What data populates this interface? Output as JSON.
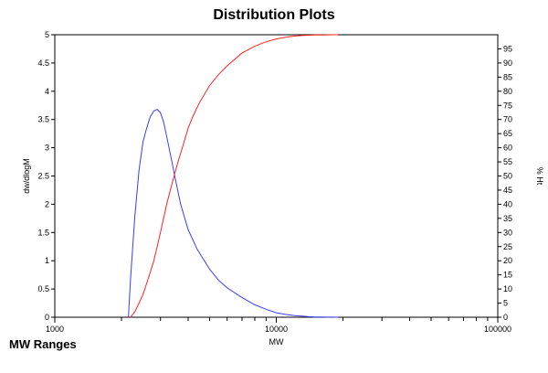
{
  "page": {
    "footer_label": "MW Ranges"
  },
  "chart_data": {
    "type": "line",
    "title": "Distribution Plots",
    "xlabel": "MW",
    "ylabel": "dw/dlogM",
    "y2label": "% Ht",
    "x_scale": "log",
    "xlim": [
      1000,
      100000
    ],
    "ylim": [
      0,
      5
    ],
    "y2lim": [
      0,
      100
    ],
    "x_tick_labels": [
      "1000",
      "10000",
      "100000"
    ],
    "y_tick_labels": [
      "0",
      "0.5",
      "1",
      "1.5",
      "2",
      "2.5",
      "3",
      "3.5",
      "4",
      "4.5",
      "5"
    ],
    "y2_tick_labels": [
      "0",
      "5",
      "10",
      "15",
      "20",
      "25",
      "30",
      "35",
      "40",
      "45",
      "50",
      "55",
      "60",
      "65",
      "70",
      "75",
      "80",
      "85",
      "90",
      "95"
    ],
    "grid": false,
    "colors": {
      "dist": "#3b3bff",
      "cum": "#ff2020",
      "axis": "#000000"
    },
    "series": [
      {
        "axis": "left",
        "x": [
          2150,
          2200,
          2300,
          2400,
          2500,
          2600,
          2700,
          2800,
          2900,
          3000,
          3100,
          3200,
          3300,
          3400,
          3500,
          3700,
          4000,
          4400,
          5000,
          5500,
          6000,
          7000,
          8000,
          9000,
          10000,
          11000,
          12000,
          13000,
          14000,
          15000,
          16000,
          17000,
          18000,
          19000
        ],
        "values": [
          0.0,
          0.7,
          1.8,
          2.6,
          3.1,
          3.35,
          3.55,
          3.65,
          3.68,
          3.62,
          3.45,
          3.2,
          2.95,
          2.7,
          2.45,
          2.0,
          1.55,
          1.2,
          0.85,
          0.65,
          0.52,
          0.35,
          0.22,
          0.14,
          0.08,
          0.05,
          0.03,
          0.02,
          0.01,
          0.005,
          0.003,
          0.002,
          0.001,
          0.0
        ]
      },
      {
        "axis": "right",
        "x": [
          2200,
          2300,
          2400,
          2500,
          2600,
          2700,
          2800,
          2900,
          3000,
          3200,
          3400,
          3600,
          3800,
          4000,
          4200,
          4500,
          5000,
          5500,
          6000,
          7000,
          8000,
          9000,
          10000,
          11000,
          12000,
          13000,
          14000,
          15000,
          16000,
          17000,
          18000,
          19000
        ],
        "values": [
          0,
          2,
          5,
          8,
          12,
          16,
          20,
          25,
          30,
          40,
          48,
          55,
          61,
          67,
          71,
          76,
          82,
          86,
          89,
          93.5,
          96,
          97.5,
          98.5,
          99.1,
          99.5,
          99.7,
          99.85,
          99.9,
          99.95,
          99.98,
          99.99,
          100
        ]
      }
    ]
  }
}
